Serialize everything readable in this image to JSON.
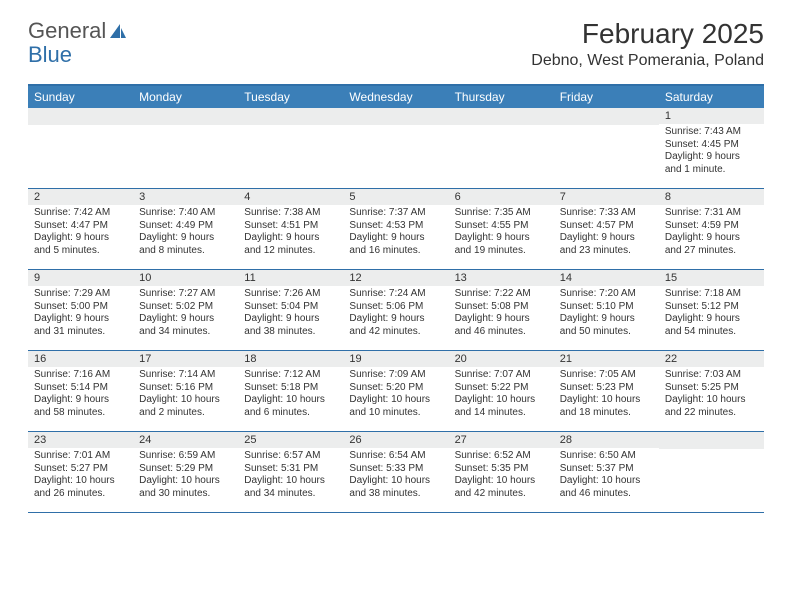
{
  "logo": {
    "text1": "General",
    "text2": "Blue"
  },
  "title": "February 2025",
  "location": "Debno, West Pomerania, Poland",
  "colors": {
    "header_bar": "#3b7fb8",
    "border": "#2f6fa8",
    "daybg": "#eceded",
    "text": "#333333"
  },
  "dow": [
    "Sunday",
    "Monday",
    "Tuesday",
    "Wednesday",
    "Thursday",
    "Friday",
    "Saturday"
  ],
  "weeks": [
    [
      null,
      null,
      null,
      null,
      null,
      null,
      {
        "n": "1",
        "sr": "Sunrise: 7:43 AM",
        "ss": "Sunset: 4:45 PM",
        "d1": "Daylight: 9 hours",
        "d2": "and 1 minute."
      }
    ],
    [
      {
        "n": "2",
        "sr": "Sunrise: 7:42 AM",
        "ss": "Sunset: 4:47 PM",
        "d1": "Daylight: 9 hours",
        "d2": "and 5 minutes."
      },
      {
        "n": "3",
        "sr": "Sunrise: 7:40 AM",
        "ss": "Sunset: 4:49 PM",
        "d1": "Daylight: 9 hours",
        "d2": "and 8 minutes."
      },
      {
        "n": "4",
        "sr": "Sunrise: 7:38 AM",
        "ss": "Sunset: 4:51 PM",
        "d1": "Daylight: 9 hours",
        "d2": "and 12 minutes."
      },
      {
        "n": "5",
        "sr": "Sunrise: 7:37 AM",
        "ss": "Sunset: 4:53 PM",
        "d1": "Daylight: 9 hours",
        "d2": "and 16 minutes."
      },
      {
        "n": "6",
        "sr": "Sunrise: 7:35 AM",
        "ss": "Sunset: 4:55 PM",
        "d1": "Daylight: 9 hours",
        "d2": "and 19 minutes."
      },
      {
        "n": "7",
        "sr": "Sunrise: 7:33 AM",
        "ss": "Sunset: 4:57 PM",
        "d1": "Daylight: 9 hours",
        "d2": "and 23 minutes."
      },
      {
        "n": "8",
        "sr": "Sunrise: 7:31 AM",
        "ss": "Sunset: 4:59 PM",
        "d1": "Daylight: 9 hours",
        "d2": "and 27 minutes."
      }
    ],
    [
      {
        "n": "9",
        "sr": "Sunrise: 7:29 AM",
        "ss": "Sunset: 5:00 PM",
        "d1": "Daylight: 9 hours",
        "d2": "and 31 minutes."
      },
      {
        "n": "10",
        "sr": "Sunrise: 7:27 AM",
        "ss": "Sunset: 5:02 PM",
        "d1": "Daylight: 9 hours",
        "d2": "and 34 minutes."
      },
      {
        "n": "11",
        "sr": "Sunrise: 7:26 AM",
        "ss": "Sunset: 5:04 PM",
        "d1": "Daylight: 9 hours",
        "d2": "and 38 minutes."
      },
      {
        "n": "12",
        "sr": "Sunrise: 7:24 AM",
        "ss": "Sunset: 5:06 PM",
        "d1": "Daylight: 9 hours",
        "d2": "and 42 minutes."
      },
      {
        "n": "13",
        "sr": "Sunrise: 7:22 AM",
        "ss": "Sunset: 5:08 PM",
        "d1": "Daylight: 9 hours",
        "d2": "and 46 minutes."
      },
      {
        "n": "14",
        "sr": "Sunrise: 7:20 AM",
        "ss": "Sunset: 5:10 PM",
        "d1": "Daylight: 9 hours",
        "d2": "and 50 minutes."
      },
      {
        "n": "15",
        "sr": "Sunrise: 7:18 AM",
        "ss": "Sunset: 5:12 PM",
        "d1": "Daylight: 9 hours",
        "d2": "and 54 minutes."
      }
    ],
    [
      {
        "n": "16",
        "sr": "Sunrise: 7:16 AM",
        "ss": "Sunset: 5:14 PM",
        "d1": "Daylight: 9 hours",
        "d2": "and 58 minutes."
      },
      {
        "n": "17",
        "sr": "Sunrise: 7:14 AM",
        "ss": "Sunset: 5:16 PM",
        "d1": "Daylight: 10 hours",
        "d2": "and 2 minutes."
      },
      {
        "n": "18",
        "sr": "Sunrise: 7:12 AM",
        "ss": "Sunset: 5:18 PM",
        "d1": "Daylight: 10 hours",
        "d2": "and 6 minutes."
      },
      {
        "n": "19",
        "sr": "Sunrise: 7:09 AM",
        "ss": "Sunset: 5:20 PM",
        "d1": "Daylight: 10 hours",
        "d2": "and 10 minutes."
      },
      {
        "n": "20",
        "sr": "Sunrise: 7:07 AM",
        "ss": "Sunset: 5:22 PM",
        "d1": "Daylight: 10 hours",
        "d2": "and 14 minutes."
      },
      {
        "n": "21",
        "sr": "Sunrise: 7:05 AM",
        "ss": "Sunset: 5:23 PM",
        "d1": "Daylight: 10 hours",
        "d2": "and 18 minutes."
      },
      {
        "n": "22",
        "sr": "Sunrise: 7:03 AM",
        "ss": "Sunset: 5:25 PM",
        "d1": "Daylight: 10 hours",
        "d2": "and 22 minutes."
      }
    ],
    [
      {
        "n": "23",
        "sr": "Sunrise: 7:01 AM",
        "ss": "Sunset: 5:27 PM",
        "d1": "Daylight: 10 hours",
        "d2": "and 26 minutes."
      },
      {
        "n": "24",
        "sr": "Sunrise: 6:59 AM",
        "ss": "Sunset: 5:29 PM",
        "d1": "Daylight: 10 hours",
        "d2": "and 30 minutes."
      },
      {
        "n": "25",
        "sr": "Sunrise: 6:57 AM",
        "ss": "Sunset: 5:31 PM",
        "d1": "Daylight: 10 hours",
        "d2": "and 34 minutes."
      },
      {
        "n": "26",
        "sr": "Sunrise: 6:54 AM",
        "ss": "Sunset: 5:33 PM",
        "d1": "Daylight: 10 hours",
        "d2": "and 38 minutes."
      },
      {
        "n": "27",
        "sr": "Sunrise: 6:52 AM",
        "ss": "Sunset: 5:35 PM",
        "d1": "Daylight: 10 hours",
        "d2": "and 42 minutes."
      },
      {
        "n": "28",
        "sr": "Sunrise: 6:50 AM",
        "ss": "Sunset: 5:37 PM",
        "d1": "Daylight: 10 hours",
        "d2": "and 46 minutes."
      },
      null
    ]
  ]
}
